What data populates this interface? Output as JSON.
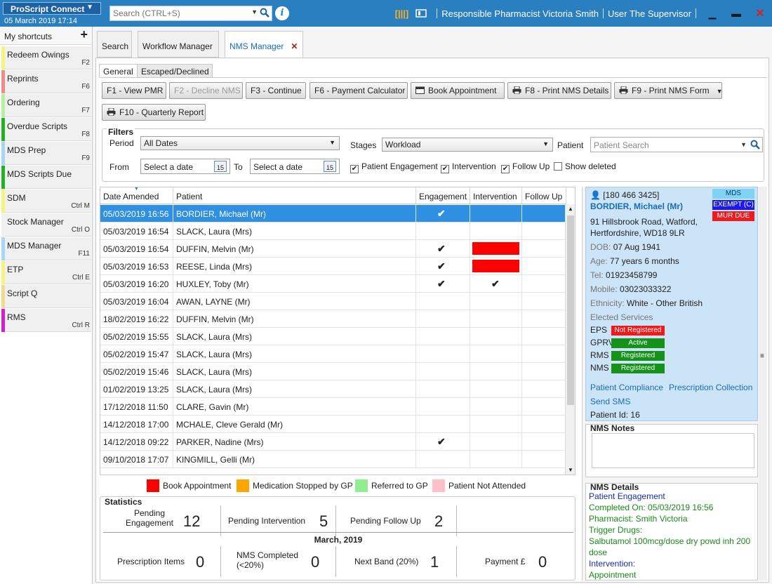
{
  "app": {
    "name": "ProScript Connect",
    "date": "05 March 2019 17:14",
    "search_placeholder": "Search (CTRL+S)",
    "pharmacist": "Responsible Pharmacist Victoria Smith",
    "user": "User The Supervisor"
  },
  "sidebar": {
    "title": "My shortcuts",
    "items": [
      {
        "label": "Redeem Owings",
        "key": "F2",
        "color": "#f4f47a"
      },
      {
        "label": "Reprints",
        "key": "F6",
        "color": "#f08c8c"
      },
      {
        "label": "Ordering",
        "key": "F7",
        "color": "#b4f0a0"
      },
      {
        "label": "Overdue Scripts",
        "key": "F8",
        "color": "#1fb31f"
      },
      {
        "label": "MDS Prep",
        "key": "F9",
        "color": "#a6d8f4"
      },
      {
        "label": "MDS Scripts Due",
        "key": "",
        "color": "#1fb31f"
      },
      {
        "label": "SDM",
        "key": "Ctrl M",
        "color": "#f4f47a"
      },
      {
        "label": "Stock Manager",
        "key": "Ctrl O",
        "color": "#f0f0f0"
      },
      {
        "label": "MDS Manager",
        "key": "F11",
        "color": "#a6d8f4"
      },
      {
        "label": "ETP",
        "key": "Ctrl E",
        "color": "#f4f47a"
      },
      {
        "label": "Script Q",
        "key": "",
        "color": "#f4d890"
      },
      {
        "label": "RMS",
        "key": "Ctrl R",
        "color": "#d81ec8"
      }
    ]
  },
  "tabs": {
    "search": "Search",
    "workflow": "Workflow Manager",
    "nms": "NMS Manager",
    "close": "✕"
  },
  "subtabs": {
    "general": "General",
    "escaped": "Escaped/Declined"
  },
  "buttons": {
    "view_pmr": "F1 - View PMR",
    "decline_nms": "F2 - Decline NMS",
    "continue": "F3 - Continue",
    "payment_calc": "F6 - Payment Calculator",
    "book_appt": "Book Appointment",
    "print_details": "F8 - Print NMS Details",
    "print_form": "F9 - Print NMS Form",
    "quarterly": "F10 - Quarterly Report"
  },
  "filters": {
    "legend": "Filters",
    "period_label": "Period",
    "period_value": "All Dates",
    "stages_label": "Stages",
    "stages_value": "Workload",
    "patient_label": "Patient",
    "patient_placeholder": "Patient Search",
    "from_label": "From",
    "to_label": "To",
    "date_placeholder": "Select a date",
    "cal_day": "15",
    "chk_engagement": "Patient Engagement",
    "chk_intervention": "Intervention",
    "chk_followup": "Follow Up",
    "chk_deleted": "Show deleted"
  },
  "grid": {
    "headers": [
      "Date Amended",
      "Patient",
      "Engagement",
      "Intervention",
      "Follow Up"
    ],
    "rows": [
      {
        "date": "05/03/2019 16:56",
        "patient": "BORDIER, Michael (Mr)",
        "eng": "✔",
        "int": "",
        "fu": "",
        "red": false
      },
      {
        "date": "05/03/2019 16:54",
        "patient": "SLACK, Laura (Mrs)",
        "eng": "",
        "int": "",
        "fu": "",
        "red": false
      },
      {
        "date": "05/03/2019 16:54",
        "patient": "DUFFIN, Melvin (Mr)",
        "eng": "✔",
        "int": "",
        "fu": "",
        "red": true
      },
      {
        "date": "05/03/2019 16:53",
        "patient": "REESE, Linda (Mrs)",
        "eng": "✔",
        "int": "",
        "fu": "",
        "red": true
      },
      {
        "date": "05/03/2019 16:20",
        "patient": "HUXLEY, Toby (Mr)",
        "eng": "✔",
        "int": "✔",
        "fu": "",
        "red": false
      },
      {
        "date": "05/03/2019 16:04",
        "patient": "AWAN, LAYNE (Mr)",
        "eng": "",
        "int": "",
        "fu": "",
        "red": false
      },
      {
        "date": "18/02/2019 16:22",
        "patient": "DUFFIN, Melvin (Mr)",
        "eng": "",
        "int": "",
        "fu": "",
        "red": false
      },
      {
        "date": "05/02/2019 15:55",
        "patient": "SLACK, Laura (Mrs)",
        "eng": "",
        "int": "",
        "fu": "",
        "red": false
      },
      {
        "date": "05/02/2019 15:47",
        "patient": "SLACK, Laura (Mrs)",
        "eng": "",
        "int": "",
        "fu": "",
        "red": false
      },
      {
        "date": "05/02/2019 15:46",
        "patient": "SLACK, Laura (Mrs)",
        "eng": "",
        "int": "",
        "fu": "",
        "red": false
      },
      {
        "date": "01/02/2019 13:25",
        "patient": "SLACK, Laura (Mrs)",
        "eng": "",
        "int": "",
        "fu": "",
        "red": false
      },
      {
        "date": "17/12/2018 11:50",
        "patient": "CLARE, Gavin (Mr)",
        "eng": "",
        "int": "",
        "fu": "",
        "red": false
      },
      {
        "date": "14/12/2018 17:00",
        "patient": "MCHALE, Cleve Gerald (Mr)",
        "eng": "",
        "int": "",
        "fu": "",
        "red": false
      },
      {
        "date": "14/12/2018 09:22",
        "patient": "PARKER, Nadine (Mrs)",
        "eng": "✔",
        "int": "",
        "fu": "",
        "red": false
      },
      {
        "date": "09/10/2018 17:07",
        "patient": "KINGMILL, Gelli (Mr)",
        "eng": "",
        "int": "",
        "fu": "",
        "red": false
      }
    ]
  },
  "legend": [
    {
      "label": "Book Appointment",
      "color": "#ff0000"
    },
    {
      "label": "Medication Stopped by GP",
      "color": "#ffa500"
    },
    {
      "label": "Referred to GP",
      "color": "#90ee90"
    },
    {
      "label": "Patient Not Attended",
      "color": "#ffc0cb"
    }
  ],
  "stats": {
    "title": "Statistics",
    "pending_engagement_label": "Pending Engagement",
    "pending_engagement": "12",
    "pending_intervention_label": "Pending Intervention",
    "pending_intervention": "5",
    "pending_followup_label": "Pending Follow Up",
    "pending_followup": "2",
    "month": "March, 2019",
    "prescription_items_label": "Prescription Items",
    "prescription_items": "0",
    "nms_completed_label": "NMS Completed (<20%)",
    "nms_completed": "0",
    "next_band_label": "Next Band (20%)",
    "next_band": "1",
    "payment_label": "Payment £",
    "payment": "0"
  },
  "patient": {
    "nhs": "[180 466 3425]",
    "name": "BORDIER, Michael (Mr)",
    "addr1": "91 Hillsbrook Road, Watford,",
    "addr2": "Hertfordshire, WD18 9LR",
    "dob_label": "DOB:",
    "dob": "07 Aug 1941",
    "age_label": "Age:",
    "age": "77 years 6 months",
    "tel_label": "Tel:",
    "tel": "01923458799",
    "mobile_label": "Mobile:",
    "mobile": "03023033322",
    "ethnicity_label": "Ethnicity:",
    "ethnicity": "White - Other British",
    "elected_label": "Elected Services",
    "badges": [
      {
        "label": "MDS",
        "bg": "#7fd3f4",
        "fg": "#0a3a6a"
      },
      {
        "label": "EXEMPT (C)",
        "bg": "#1a1af0",
        "fg": "#ffffff"
      },
      {
        "label": "MUR DUE",
        "bg": "#f01a1a",
        "fg": "#ffffff"
      }
    ],
    "services": [
      {
        "name": "EPS",
        "status": "Not Registered",
        "bg": "#f01a1a"
      },
      {
        "name": "GPRV",
        "status": "Active",
        "bg": "#16921a"
      },
      {
        "name": "RMS",
        "status": "Registered",
        "bg": "#16921a"
      },
      {
        "name": "NMS",
        "status": "Registered",
        "bg": "#16921a"
      }
    ],
    "compliance": "Patient Compliance",
    "collection": "Prescription Collection",
    "sms": "Send SMS",
    "id_label": "Patient Id:",
    "id": "16"
  },
  "notes": {
    "title": "NMS Notes"
  },
  "details": {
    "title": "NMS Details",
    "engagement": "Patient Engagement",
    "completed": "Completed On: 05/03/2019 16:56",
    "pharmacist": "Pharmacist: Smith Victoria",
    "trigger": "Trigger Drugs:",
    "drug": "Salbutamol 100mcg/dose dry powd inh 200 dose",
    "intervention": "Intervention:",
    "appointment": "Appointment"
  }
}
